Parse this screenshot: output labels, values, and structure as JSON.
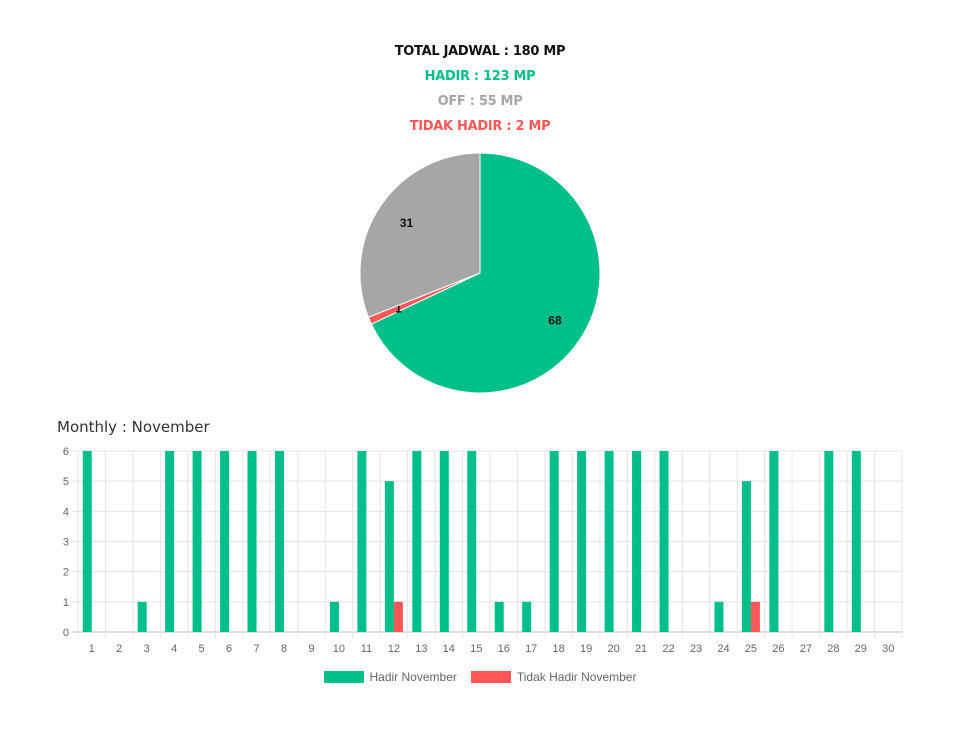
{
  "summary": {
    "total": "TOTAL JADWAL : 180 MP",
    "hadir": "HADIR : 123 MP",
    "off": "OFF : 55 MP",
    "tidak_hadir": "TIDAK HADIR : 2 MP"
  },
  "colors": {
    "hadir": "#00bf8a",
    "off": "#a6a6a6",
    "tidak_hadir": "#ff5757"
  },
  "chart_data": [
    {
      "type": "pie",
      "slices": [
        {
          "label": "HADIR",
          "value": 68,
          "color": "#00bf8a"
        },
        {
          "label": "TIDAK HADIR",
          "value": 1,
          "color": "#ff5757"
        },
        {
          "label": "OFF",
          "value": 31,
          "color": "#a6a6a6"
        }
      ]
    },
    {
      "type": "bar",
      "title": "Monthly : November",
      "categories": [
        "1",
        "2",
        "3",
        "4",
        "5",
        "6",
        "7",
        "8",
        "9",
        "10",
        "11",
        "12",
        "13",
        "14",
        "15",
        "16",
        "17",
        "18",
        "19",
        "20",
        "21",
        "22",
        "23",
        "24",
        "25",
        "26",
        "27",
        "28",
        "29",
        "30"
      ],
      "series": [
        {
          "name": "Hadir November",
          "color": "#00bf8a",
          "values": [
            6,
            0,
            1,
            6,
            6,
            6,
            6,
            6,
            0,
            1,
            6,
            5,
            6,
            6,
            6,
            1,
            1,
            6,
            6,
            6,
            6,
            6,
            0,
            1,
            5,
            6,
            0,
            6,
            6,
            0
          ]
        },
        {
          "name": "Tidak Hadir November",
          "color": "#ff5757",
          "values": [
            0,
            0,
            0,
            0,
            0,
            0,
            0,
            0,
            0,
            0,
            0,
            1,
            0,
            0,
            0,
            0,
            0,
            0,
            0,
            0,
            0,
            0,
            0,
            0,
            1,
            0,
            0,
            0,
            0,
            0
          ]
        }
      ],
      "ylim": [
        0,
        6
      ],
      "yticks": [
        0,
        1,
        2,
        3,
        4,
        5,
        6
      ],
      "grid": true,
      "legend_position": "bottom"
    }
  ]
}
